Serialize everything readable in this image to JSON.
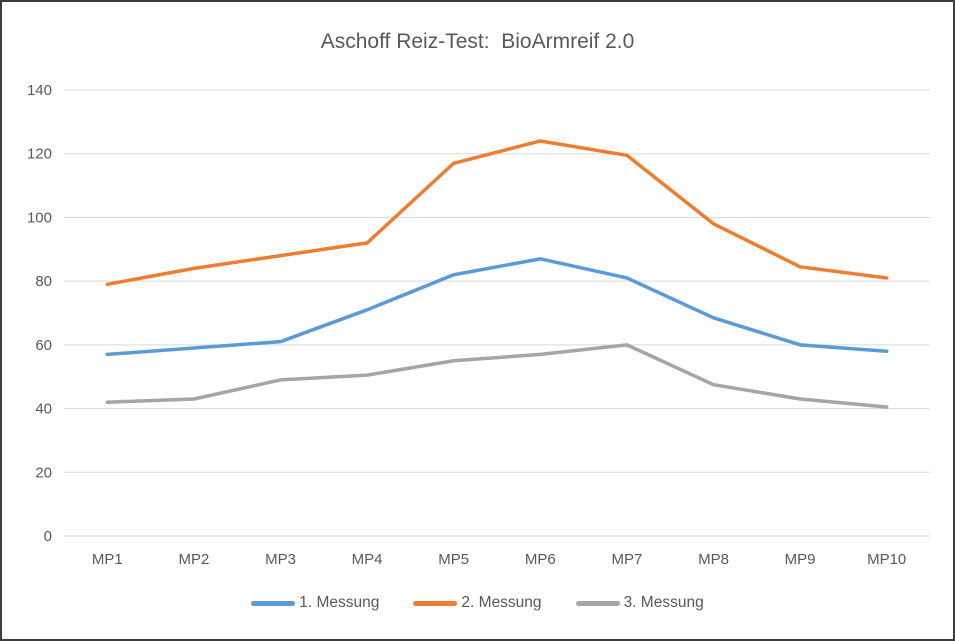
{
  "window": {
    "background": "#ffffff",
    "border_color": "#3d3d3d",
    "text_color": "#595959",
    "gridline_color": "#d9d9d9"
  },
  "chart_data": {
    "type": "line",
    "title": "Aschoff Reiz-Test:  BioArmreif 2.0",
    "xlabel": "",
    "ylabel": "",
    "categories": [
      "MP1",
      "MP2",
      "MP3",
      "MP4",
      "MP5",
      "MP6",
      "MP7",
      "MP8",
      "MP9",
      "MP10"
    ],
    "series": [
      {
        "name": "1. Messung",
        "color": "#5B9BD5",
        "values": [
          57,
          59,
          61,
          71,
          82,
          87,
          81,
          68.5,
          60,
          58
        ]
      },
      {
        "name": "2. Messung",
        "color": "#ED7D31",
        "values": [
          79,
          84,
          88,
          92,
          117,
          124,
          119.5,
          98,
          84.5,
          81
        ]
      },
      {
        "name": "3. Messung",
        "color": "#A5A5A5",
        "values": [
          42,
          43,
          49,
          50.5,
          55,
          57,
          60,
          47.5,
          43,
          40.5
        ]
      }
    ],
    "ylim": [
      0,
      140
    ],
    "yticks": [
      0,
      20,
      40,
      60,
      80,
      100,
      120,
      140
    ],
    "grid": true,
    "legend_position": "bottom"
  }
}
